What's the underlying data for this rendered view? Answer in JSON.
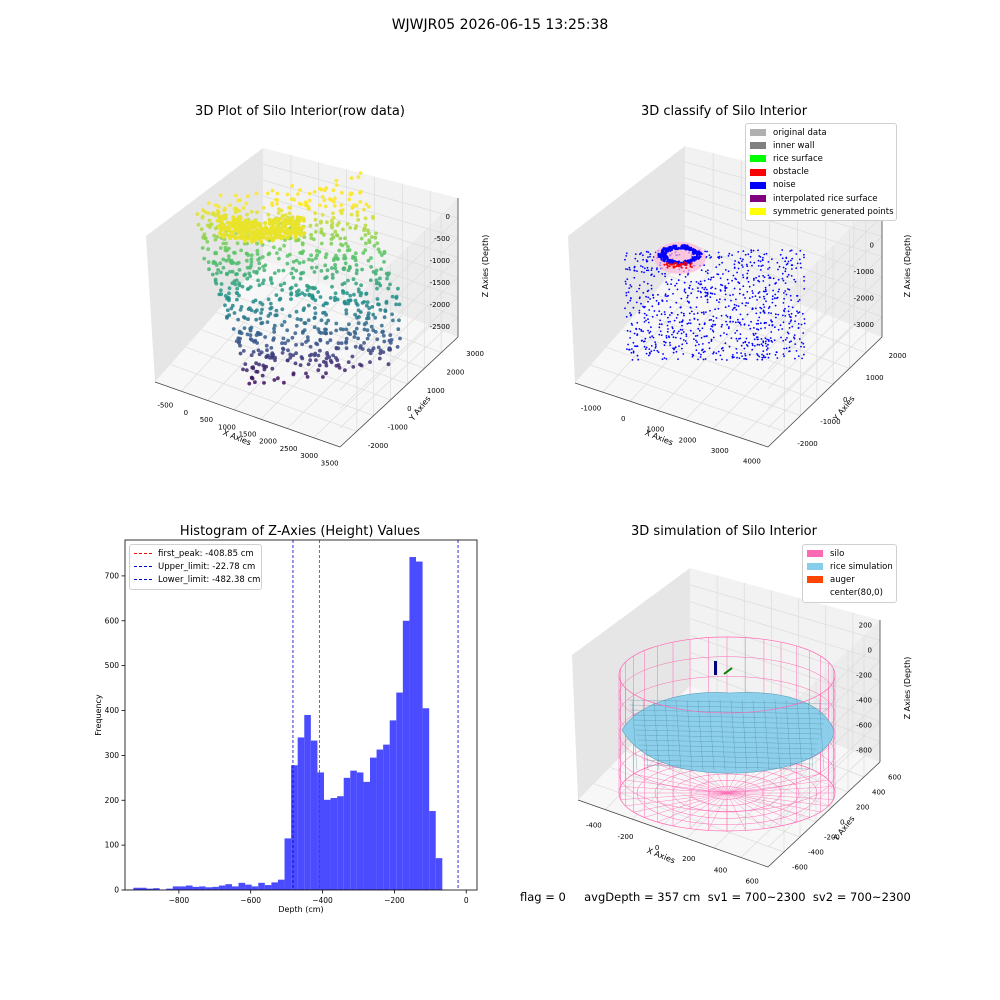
{
  "suptitle": "WJWJR05 2026-06-15 13:25:38",
  "footer": "flag = 0     avgDepth = 357 cm  sv1 = 700~2300  sv2 = 700~2300",
  "chart_data": [
    {
      "type": "scatter",
      "panel": "3d-raw",
      "title": "3D Plot of Silo Interior(row data)",
      "xlabel": "X Axies",
      "ylabel": "Y Axies",
      "zlabel": "Z Axies (Depth)",
      "xticks": [
        "-500",
        "0",
        "500",
        "1000",
        "1500",
        "2000",
        "2500",
        "3000",
        "3500"
      ],
      "yticks": [
        "-2000",
        "-1000",
        "0",
        "1000",
        "2000",
        "3000"
      ],
      "zticks": [
        "-2500",
        "-2000",
        "-1500",
        "-1000",
        "-500",
        "0"
      ],
      "colormap": "viridis"
    },
    {
      "type": "scatter",
      "panel": "3d-classify",
      "title": "3D classify of Silo Interior",
      "xlabel": "X Axies",
      "ylabel": "Y Axies",
      "zlabel": "Z Axies (Depth)",
      "xticks": [
        "-1000",
        "0",
        "1000",
        "2000",
        "3000",
        "4000"
      ],
      "yticks": [
        "-2000",
        "-1000",
        "0",
        "1000",
        "2000"
      ],
      "zticks": [
        "-3000",
        "-2000",
        "-1000",
        "0",
        "1000"
      ],
      "legend": [
        {
          "label": "original data",
          "color": "#b0b0b0"
        },
        {
          "label": "inner wall",
          "color": "#808080"
        },
        {
          "label": "rice surface",
          "color": "#00ff00"
        },
        {
          "label": "obstacle",
          "color": "#ff0000"
        },
        {
          "label": "noise",
          "color": "#0000ff"
        },
        {
          "label": "interpolated rice surface",
          "color": "#800080"
        },
        {
          "label": "symmetric generated points",
          "color": "#ffff00"
        }
      ]
    },
    {
      "type": "bar",
      "panel": "histogram",
      "title": "Histogram of Z-Axies (Height) Values",
      "xlabel": "Depth (cm)",
      "ylabel": "Frequency",
      "xlim": [
        -950,
        30
      ],
      "ylim": [
        0,
        780
      ],
      "xticks": [
        -800,
        -600,
        -400,
        -200,
        0
      ],
      "yticks": [
        0,
        100,
        200,
        300,
        400,
        500,
        600,
        700
      ],
      "bin_start": -945,
      "bin_width": 18.3,
      "values": [
        1,
        5,
        5,
        3,
        4,
        1,
        3,
        8,
        8,
        10,
        7,
        8,
        6,
        7,
        10,
        13,
        8,
        16,
        12,
        8,
        16,
        11,
        17,
        23,
        115,
        278,
        340,
        390,
        333,
        262,
        201,
        205,
        209,
        250,
        266,
        262,
        241,
        295,
        313,
        324,
        378,
        440,
        600,
        742,
        732,
        405,
        176,
        71
      ],
      "bar_color": "#4b4bff",
      "vlines": [
        {
          "label": "first_peak: -408.85 cm",
          "x": -408.85,
          "color": "#ff0000"
        },
        {
          "label": "Upper_limit: -22.78 cm",
          "x": -22.78,
          "color": "#0000cc"
        },
        {
          "label": "Lower_limit: -482.38 cm",
          "x": -482.38,
          "color": "#0000cc"
        }
      ]
    },
    {
      "type": "surface",
      "panel": "3d-simulation",
      "title": "3D simulation of Silo Interior",
      "xlabel": "X Axies",
      "ylabel": "Y Axies",
      "zlabel": "Z Axies (Depth)",
      "xticks": [
        "-400",
        "-200",
        "0",
        "200",
        "400",
        "600"
      ],
      "yticks": [
        "-600",
        "-400",
        "-200",
        "0",
        "200",
        "400",
        "600"
      ],
      "zticks": [
        "-800",
        "-600",
        "-400",
        "-200",
        "0",
        "200"
      ],
      "legend": [
        {
          "label": "silo",
          "color": "#ff69b4"
        },
        {
          "label": "rice simulation",
          "color": "#87ceeb"
        },
        {
          "label": "auger",
          "color": "#ff4500"
        },
        {
          "label": "center(80,0)",
          "color": ""
        }
      ]
    }
  ]
}
